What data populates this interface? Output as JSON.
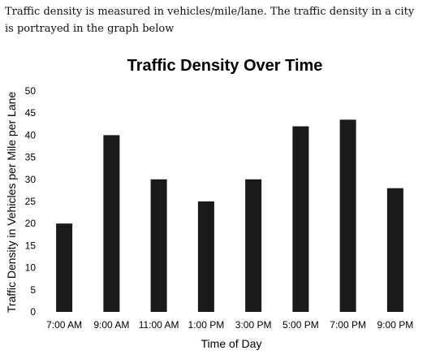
{
  "intro_text": "Traffic density is measured in vehicles/mile/lane. The traffic density in a city is portrayed in the graph below",
  "chart_data": {
    "type": "bar",
    "title": "Traffic Density Over Time",
    "xlabel": "Time of Day",
    "ylabel": "Traffic Density in Vehicles per Mile per Lane",
    "categories": [
      "7:00 AM",
      "9:00 AM",
      "11:00 AM",
      "1:00 PM",
      "3:00 PM",
      "5:00 PM",
      "7:00 PM",
      "9:00 PM"
    ],
    "values": [
      20,
      40,
      30,
      25,
      30,
      42,
      43.5,
      28
    ],
    "ylim": [
      0,
      50
    ],
    "yticks": [
      0,
      5,
      10,
      15,
      20,
      25,
      30,
      35,
      40,
      45,
      50
    ],
    "grid": false,
    "legend": "none",
    "bar_color": "#1a1a1a"
  }
}
